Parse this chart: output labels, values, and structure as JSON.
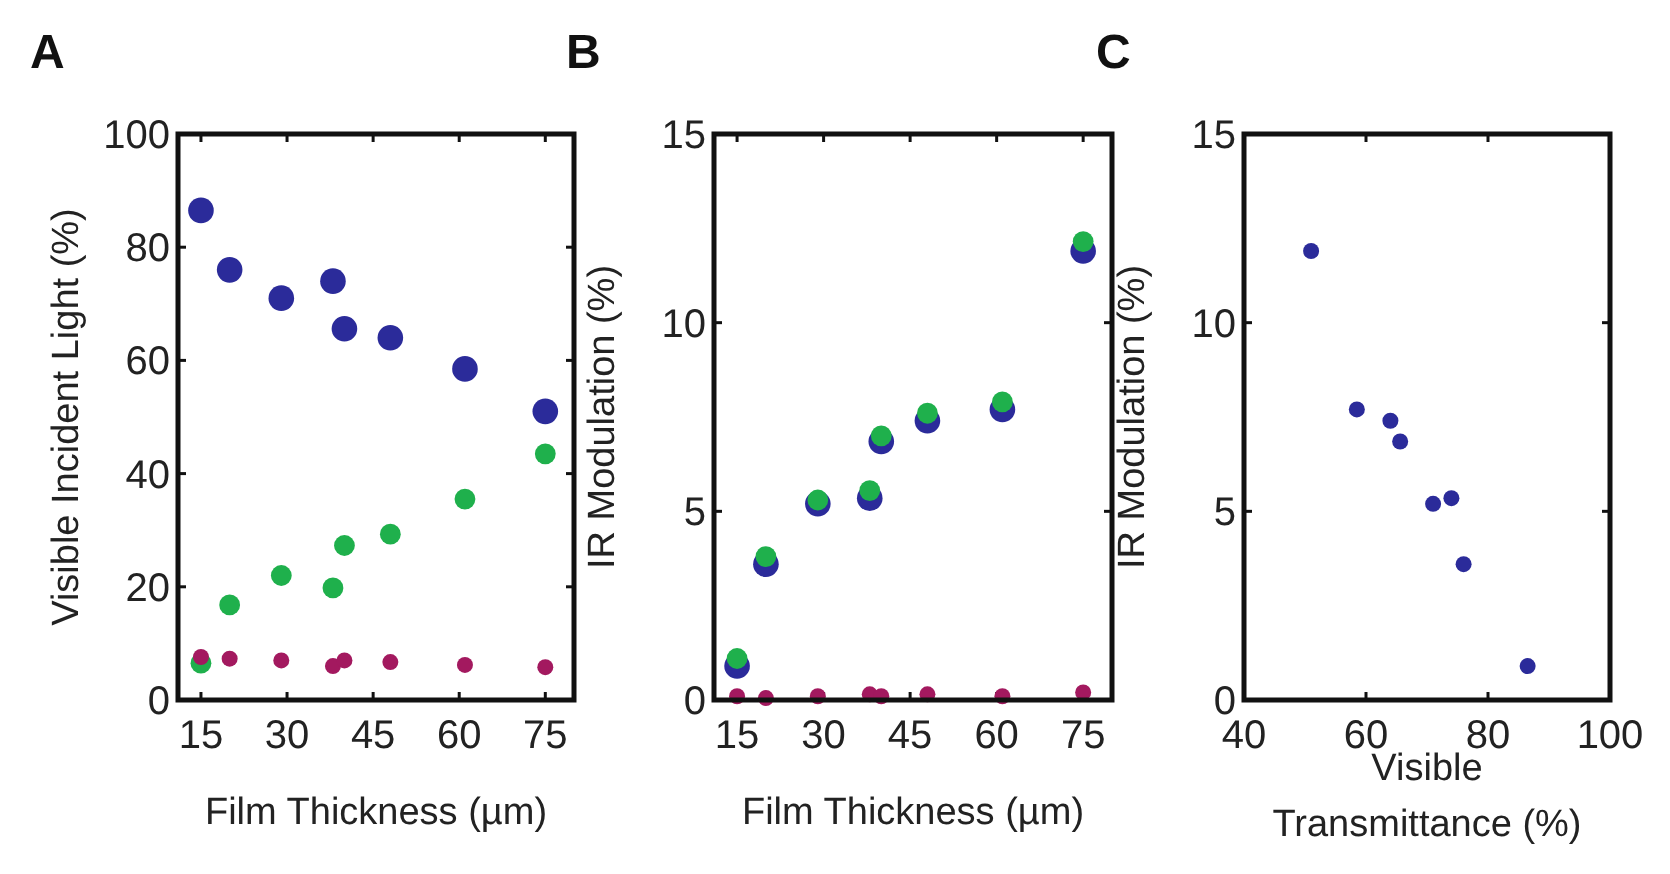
{
  "chart_data": [
    {
      "type": "scatter",
      "title": "A",
      "xlabel": "Film Thickness (µm)",
      "ylabel": "Visible Incident Light (%)",
      "xlim": [
        11,
        80
      ],
      "xticks": [
        15,
        30,
        45,
        60,
        75
      ],
      "ylim": [
        0,
        100
      ],
      "yticks": [
        0,
        20,
        40,
        60,
        80,
        100
      ],
      "marker": "circle",
      "grid": false,
      "series": [
        {
          "color": "#2b2b9a",
          "x": [
            15,
            20,
            29,
            38,
            40,
            48,
            61,
            75
          ],
          "values": [
            86.5,
            76,
            71,
            74,
            65.6,
            64,
            58.5,
            51
          ]
        },
        {
          "color": "#1fb04c",
          "x": [
            15,
            20,
            29,
            38,
            40,
            48,
            61,
            75
          ],
          "values": [
            6.5,
            16.8,
            22,
            19.8,
            27.3,
            29.3,
            35.5,
            43.5
          ]
        },
        {
          "color": "#a3195f",
          "x": [
            15,
            20,
            29,
            38,
            40,
            48,
            61,
            75
          ],
          "values": [
            7.6,
            7.3,
            7,
            6,
            7,
            6.7,
            6.2,
            5.8
          ]
        }
      ]
    },
    {
      "type": "scatter",
      "title": "B",
      "xlabel": "Film Thickness (µm)",
      "ylabel": "IR Modulation (%)",
      "xlim": [
        11,
        80
      ],
      "xticks": [
        15,
        30,
        45,
        60,
        75
      ],
      "ylim": [
        0,
        15
      ],
      "yticks": [
        0,
        5,
        10,
        15
      ],
      "marker": "circle",
      "grid": false,
      "series": [
        {
          "color": "#2b2b9a",
          "x": [
            15,
            20,
            29,
            38,
            40,
            48,
            61,
            75
          ],
          "values": [
            0.9,
            3.6,
            5.2,
            5.35,
            6.85,
            7.4,
            7.7,
            11.9
          ]
        },
        {
          "color": "#1fb04c",
          "x": [
            15,
            20,
            29,
            38,
            40,
            48,
            61,
            75
          ],
          "values": [
            1.1,
            3.8,
            5.3,
            5.55,
            7,
            7.6,
            7.9,
            12.15
          ]
        },
        {
          "color": "#a3195f",
          "x": [
            15,
            20,
            29,
            38,
            40,
            48,
            61,
            75
          ],
          "values": [
            0.1,
            0.05,
            0.1,
            0.15,
            0.1,
            0.15,
            0.1,
            0.2
          ]
        }
      ]
    },
    {
      "type": "scatter",
      "title": "C",
      "xlabel": "Visible Transmittance (%)",
      "ylabel": "IR Modulation (%)",
      "xlim": [
        40,
        100
      ],
      "xticks": [
        40,
        60,
        80,
        100
      ],
      "ylim": [
        0,
        15
      ],
      "yticks": [
        0,
        5,
        10,
        15
      ],
      "marker": "circle",
      "grid": false,
      "series": [
        {
          "color": "#2b2b9a",
          "x": [
            51,
            58.5,
            64,
            65.6,
            71,
            74,
            76,
            86.5
          ],
          "values": [
            11.9,
            7.7,
            7.4,
            6.85,
            5.2,
            5.35,
            3.6,
            0.9
          ]
        }
      ]
    }
  ]
}
